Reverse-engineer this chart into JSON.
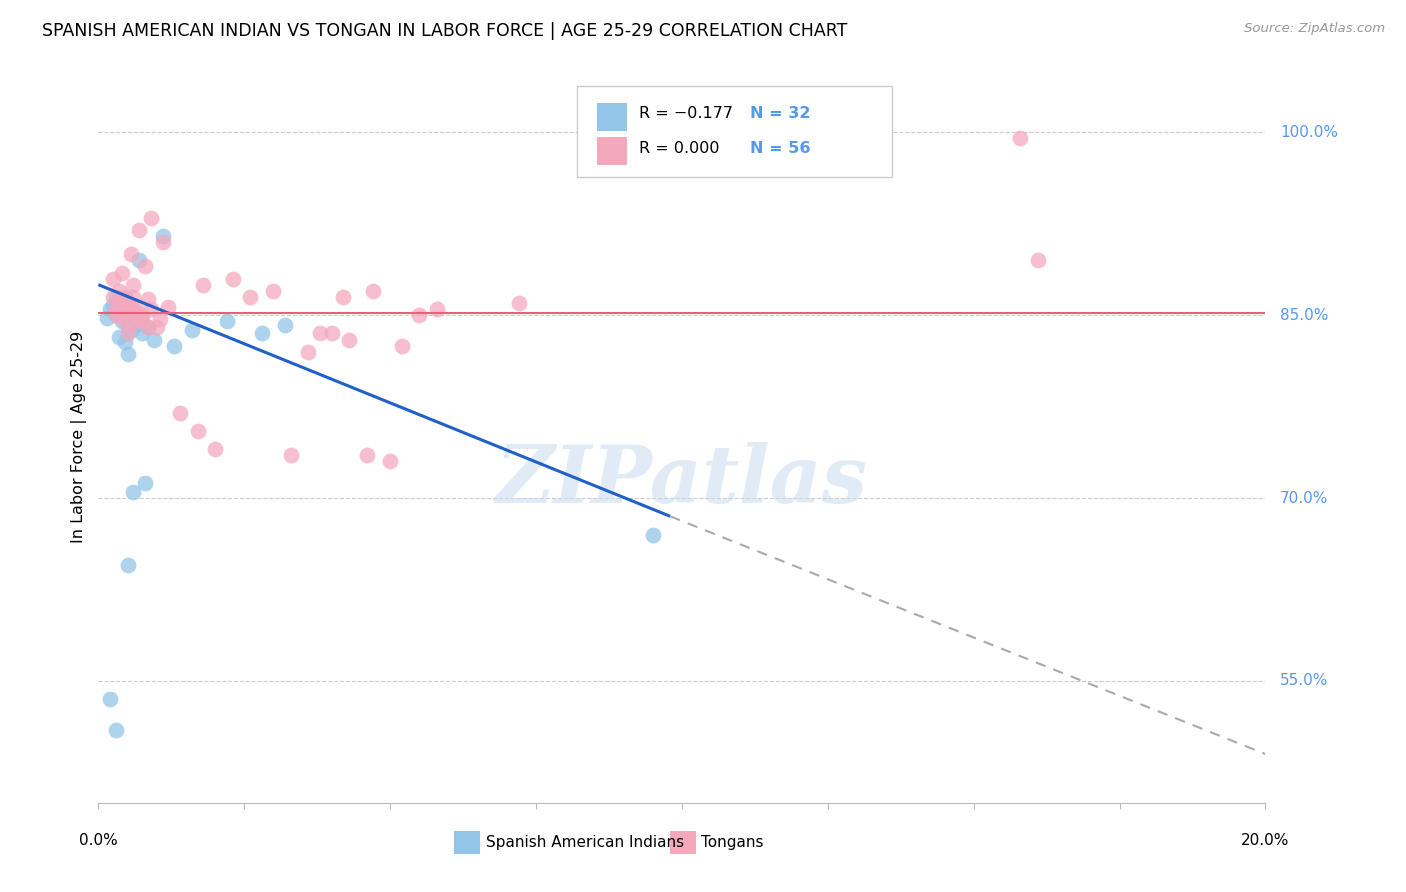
{
  "title": "SPANISH AMERICAN INDIAN VS TONGAN IN LABOR FORCE | AGE 25-29 CORRELATION CHART",
  "source": "Source: ZipAtlas.com",
  "ylabel": "In Labor Force | Age 25-29",
  "ylabel_right_ticks": [
    55.0,
    70.0,
    85.0,
    100.0
  ],
  "legend_blue_R": "R = −0.177",
  "legend_blue_N": "N = 32",
  "legend_pink_R": "R = 0.000",
  "legend_pink_N": "N = 56",
  "legend_label_blue": "Spanish American Indians",
  "legend_label_pink": "Tongans",
  "blue_color": "#92C5E8",
  "pink_color": "#F4A8BE",
  "blue_line_color": "#2060C8",
  "pink_line_color": "#E8607A",
  "watermark_text": "ZIPatlas",
  "blue_scatter_x": [
    0.4,
    1.1,
    0.7,
    0.2,
    0.5,
    0.3,
    0.25,
    0.15,
    0.35,
    0.45,
    0.55,
    0.65,
    0.75,
    0.85,
    0.95,
    0.3,
    0.4,
    0.5,
    0.35,
    0.45,
    2.2,
    3.2,
    1.6,
    0.5,
    1.3,
    2.8,
    0.6,
    0.8,
    9.5,
    0.5,
    0.2,
    0.3
  ],
  "blue_scatter_y": [
    84.5,
    91.5,
    89.5,
    85.5,
    84.0,
    85.0,
    85.8,
    84.8,
    86.0,
    85.2,
    83.8,
    84.2,
    83.5,
    84.0,
    83.0,
    86.5,
    85.5,
    84.8,
    83.2,
    82.8,
    84.5,
    84.2,
    83.8,
    81.8,
    82.5,
    83.5,
    70.5,
    71.2,
    67.0,
    64.5,
    53.5,
    51.0
  ],
  "pink_scatter_x": [
    0.7,
    0.9,
    0.4,
    0.55,
    0.6,
    1.1,
    0.35,
    0.8,
    0.25,
    0.45,
    0.5,
    0.75,
    1.0,
    0.65,
    0.3,
    0.4,
    1.2,
    0.55,
    0.7,
    0.85,
    0.9,
    0.6,
    0.45,
    0.5,
    1.8,
    2.3,
    2.6,
    3.0,
    4.2,
    4.7,
    5.2,
    5.5,
    5.8,
    7.2,
    3.6,
    3.8,
    1.4,
    1.7,
    2.0,
    3.3,
    5.0,
    4.6,
    0.25,
    0.35,
    0.55,
    0.65,
    0.85,
    1.05,
    0.45,
    0.75,
    15.8,
    16.1,
    4.0,
    4.3,
    0.3,
    0.4
  ],
  "pink_scatter_y": [
    92.0,
    93.0,
    88.5,
    90.0,
    87.5,
    91.0,
    87.0,
    89.0,
    88.0,
    86.5,
    86.0,
    84.5,
    84.0,
    85.5,
    85.0,
    85.3,
    85.7,
    84.3,
    84.7,
    86.3,
    85.5,
    86.5,
    84.5,
    83.5,
    87.5,
    88.0,
    86.5,
    87.0,
    86.5,
    87.0,
    82.5,
    85.0,
    85.5,
    86.0,
    82.0,
    83.5,
    77.0,
    75.5,
    74.0,
    73.5,
    73.0,
    73.5,
    86.5,
    86.0,
    85.7,
    85.3,
    84.0,
    84.7,
    86.3,
    85.0,
    99.5,
    89.5,
    83.5,
    83.0,
    85.5,
    85.0
  ],
  "blue_reg_x0": 0.0,
  "blue_reg_y0": 87.5,
  "blue_reg_x1": 9.8,
  "blue_reg_y1": 68.5,
  "blue_dash_x0": 9.8,
  "blue_dash_y0": 68.5,
  "blue_dash_x1": 20.0,
  "blue_dash_y1": 49.0,
  "pink_reg_y": 85.2,
  "xlim": [
    0.0,
    20.0
  ],
  "ylim": [
    45.0,
    105.0
  ],
  "grid_color": "#CCCCCC",
  "right_axis_color": "#5599EE",
  "grid_yticks": [
    55.0,
    70.0,
    85.0,
    100.0
  ]
}
